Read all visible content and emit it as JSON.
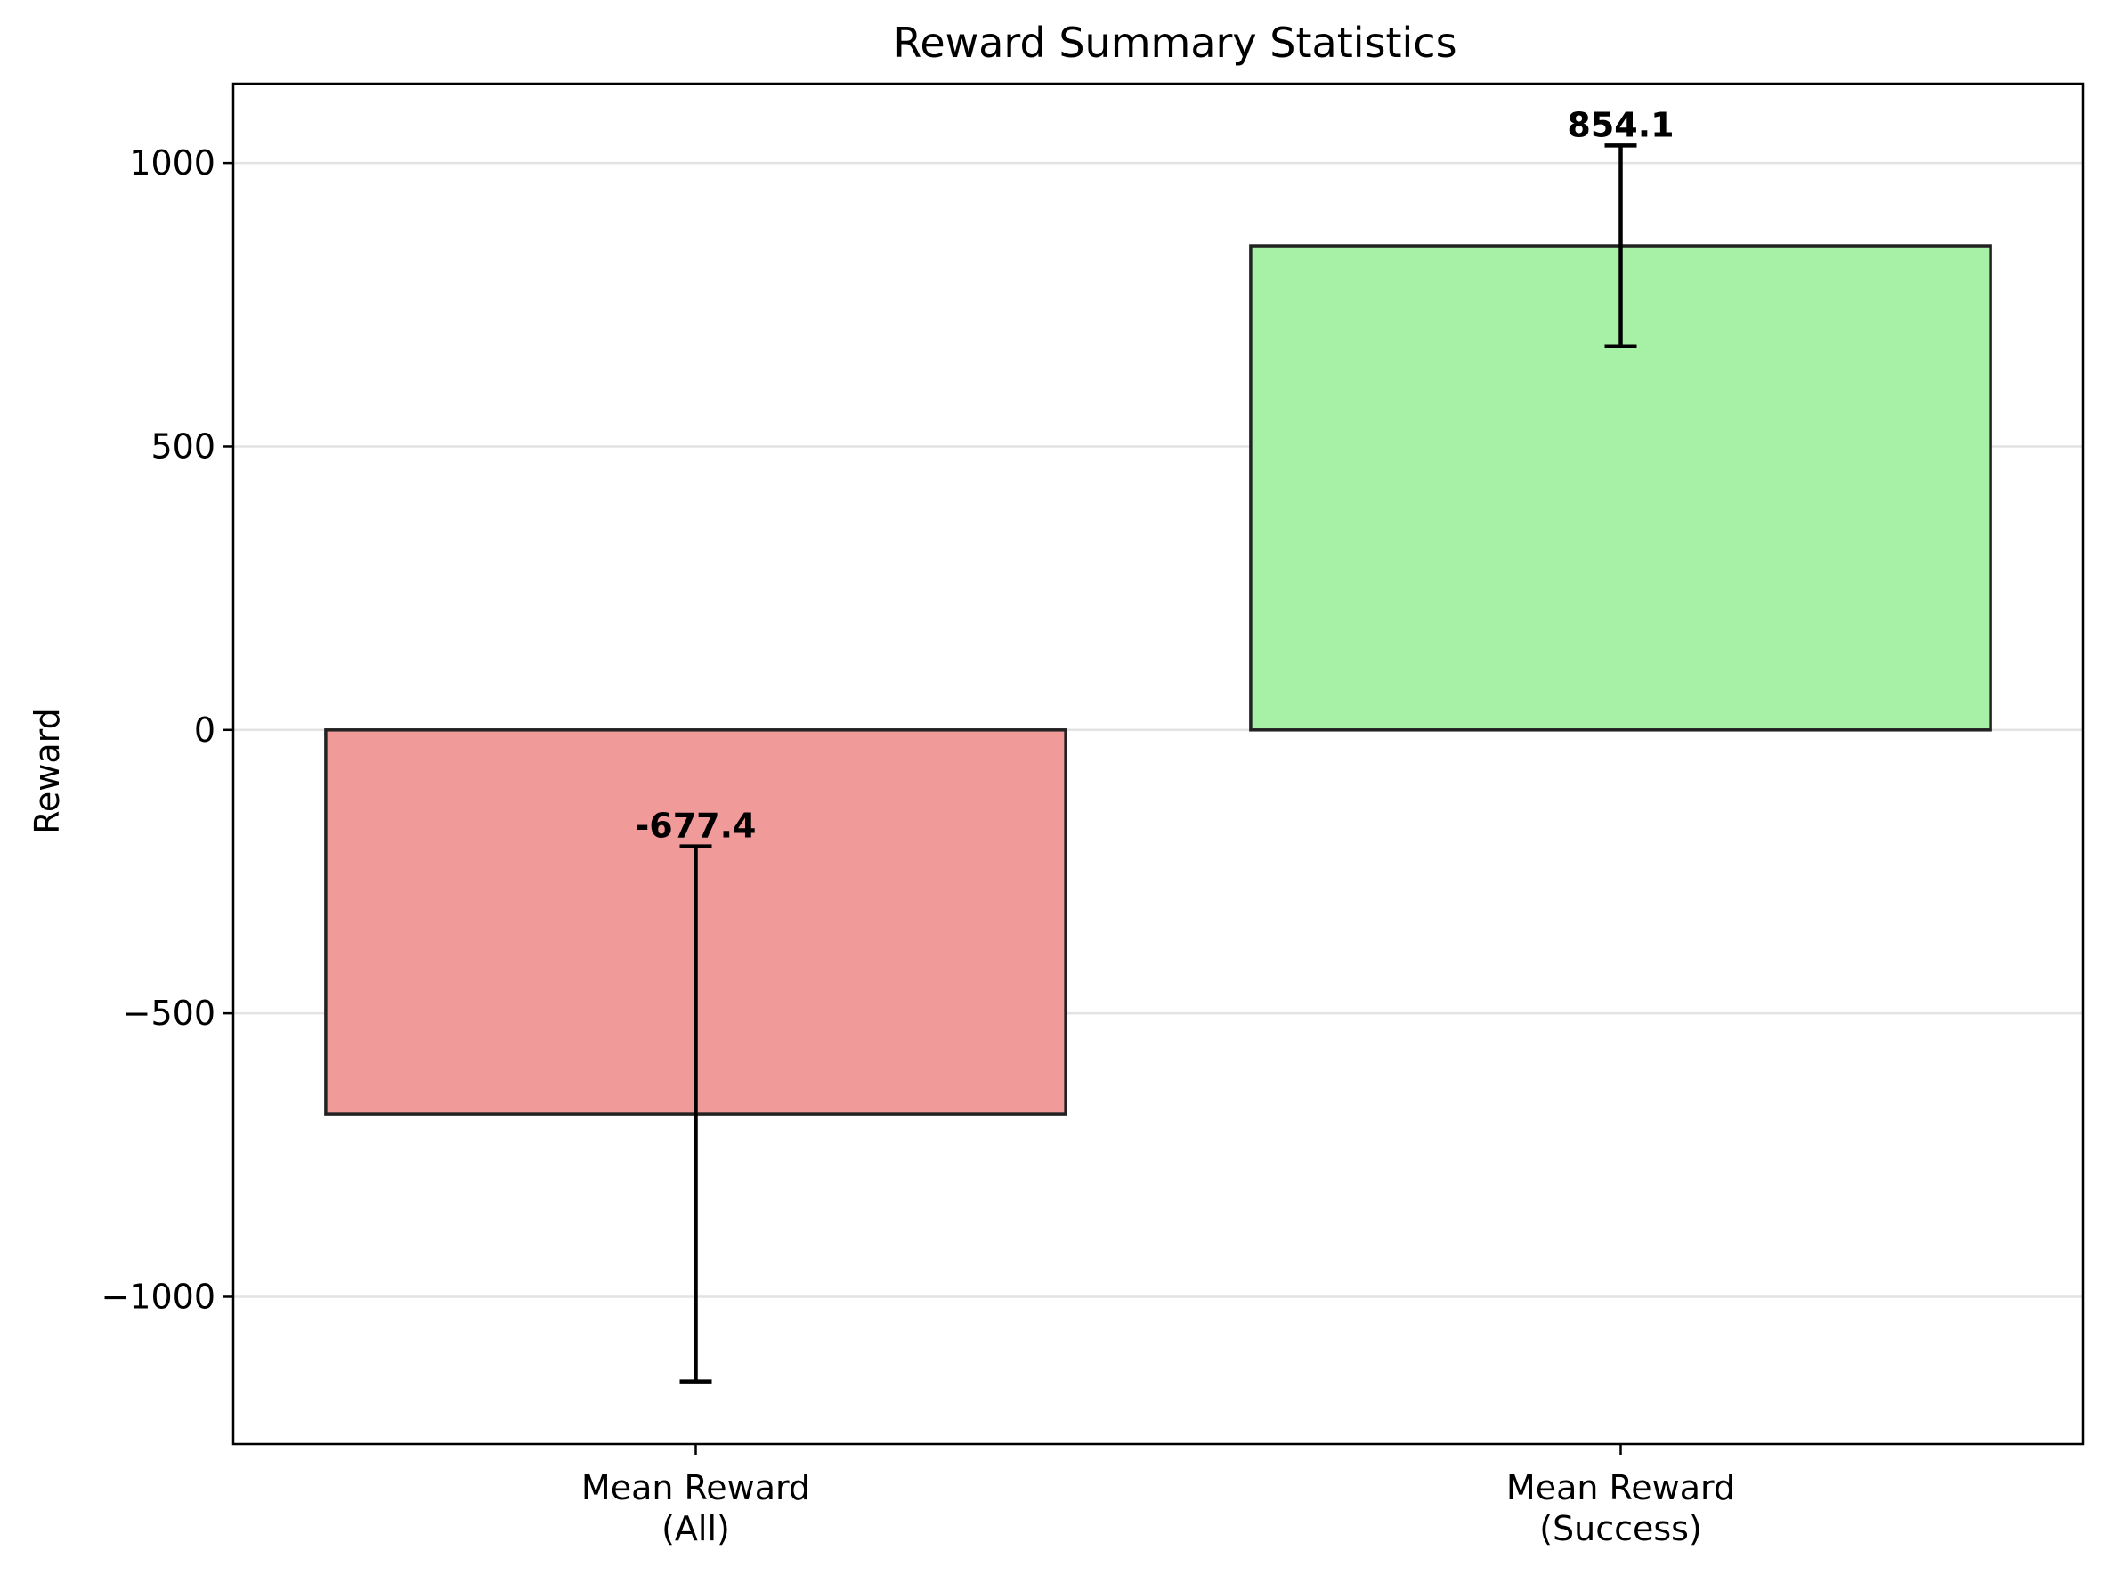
{
  "chart_data": {
    "type": "bar",
    "title": "Reward Summary Statistics",
    "xlabel": "",
    "ylabel": "Reward",
    "ylim": [
      -1260,
      1140
    ],
    "yticks": [
      1000,
      500,
      0,
      -500,
      -1000
    ],
    "ytick_labels": [
      "1000",
      "500",
      "0",
      "−500",
      "−1000"
    ],
    "grid": "horizontal",
    "categories": [
      [
        "Mean Reward",
        "(All)"
      ],
      [
        "Mean Reward",
        "(Success)"
      ]
    ],
    "values": [
      -677.4,
      854.1
    ],
    "errors": [
      472,
      177
    ],
    "value_labels": [
      "-677.4",
      "854.1"
    ],
    "colors": [
      "#f19a9a",
      "#a6f1a6"
    ]
  }
}
